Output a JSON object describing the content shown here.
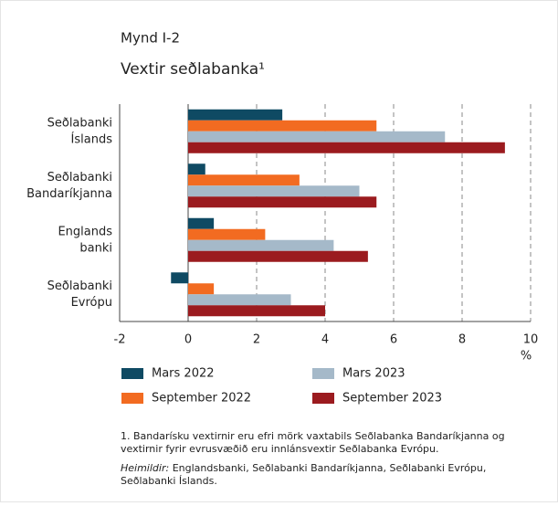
{
  "chart_data": {
    "type": "hbar",
    "figure_label": "Mynd I-2",
    "title": "Vextir seðlabanka¹",
    "categories": [
      [
        "Seðlabanki",
        "Íslands"
      ],
      [
        "Seðlabanki",
        "Bandaríkjanna"
      ],
      [
        "Englands",
        "banki"
      ],
      [
        "Seðlabanki",
        "Evrópu"
      ]
    ],
    "series": [
      {
        "name": "Mars 2022",
        "color": "#0f4a63",
        "values": [
          2.75,
          0.5,
          0.75,
          -0.5
        ]
      },
      {
        "name": "September 2022",
        "color": "#f26b21",
        "values": [
          5.5,
          3.25,
          2.25,
          0.75
        ]
      },
      {
        "name": "Mars 2023",
        "color": "#a5b9c9",
        "values": [
          7.5,
          5.0,
          4.25,
          3.0
        ]
      },
      {
        "name": "September 2023",
        "color": "#9b1b1f",
        "values": [
          9.25,
          5.5,
          5.25,
          4.0
        ]
      }
    ],
    "xlim": [
      -2,
      10
    ],
    "xticks": [
      -2,
      0,
      2,
      4,
      6,
      8,
      10
    ],
    "x_unit": "%",
    "grid": true,
    "footnote": [
      "1. Bandarísku vextirnir eru efri mörk vaxtabils Seðlabanka Bandaríkjanna og",
      "vextirnir fyrir evrusvæðið eru innlánsvextir Seðlabanka Evrópu."
    ],
    "source_label": "Heimildir:",
    "source": [
      "Englandsbanki, Seðlabanki Bandaríkjanna, Seðlabanki Evrópu,",
      "Seðlabanki Íslands."
    ]
  }
}
